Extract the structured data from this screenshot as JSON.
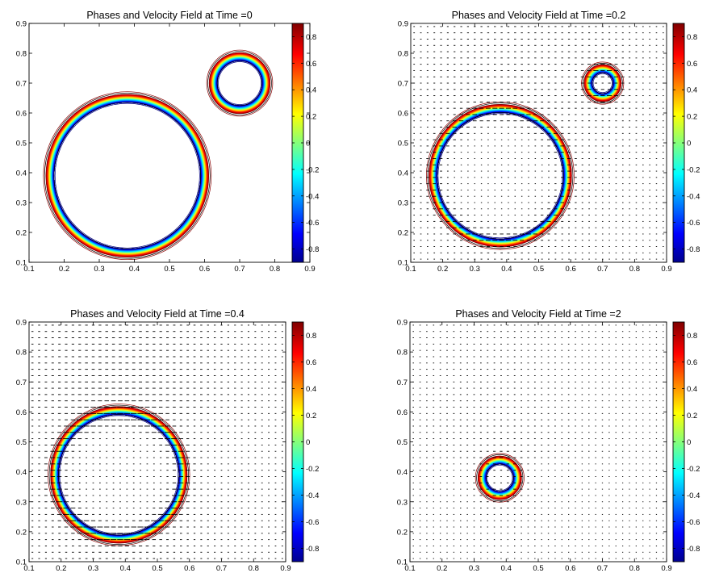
{
  "colors": {
    "colormap": "jet",
    "jet_stops": [
      "#00008f",
      "#0000ff",
      "#00ffff",
      "#ffff00",
      "#ff0000",
      "#800000"
    ],
    "contour_line": "#000000",
    "background": "#ffffff"
  },
  "chart_data": [
    {
      "type": "contour+quiver",
      "title": "Phases and Velocity Field at Time =0",
      "xlim": [
        0.1,
        0.9
      ],
      "ylim": [
        0.1,
        0.9
      ],
      "xticks": [
        "0.1",
        "0.2",
        "0.3",
        "0.4",
        "0.5",
        "0.6",
        "0.7",
        "0.8",
        "0.9"
      ],
      "yticks": [
        "0.1",
        "0.2",
        "0.3",
        "0.4",
        "0.5",
        "0.6",
        "0.7",
        "0.8",
        "0.9"
      ],
      "colorbar": {
        "range": [
          -0.9,
          0.9
        ],
        "ticks": [
          "-0.8",
          "-0.6",
          "-0.4",
          "-0.2",
          "0",
          "0.2",
          "0.4",
          "0.6",
          "0.8"
        ]
      },
      "interfaces": [
        {
          "center": [
            0.38,
            0.39
          ],
          "radius": 0.22
        },
        {
          "center": [
            0.7,
            0.7
          ],
          "radius": 0.075
        }
      ],
      "velocity_field": {
        "present": false,
        "strength": 0
      }
    },
    {
      "type": "contour+quiver",
      "title": "Phases and Velocity Field at Time =0.2",
      "xlim": [
        0.1,
        0.9
      ],
      "ylim": [
        0.1,
        0.9
      ],
      "xticks": [
        "0.1",
        "0.2",
        "0.3",
        "0.4",
        "0.5",
        "0.6",
        "0.7",
        "0.8",
        "0.9"
      ],
      "yticks": [
        "0.1",
        "0.2",
        "0.3",
        "0.4",
        "0.5",
        "0.6",
        "0.7",
        "0.8",
        "0.9"
      ],
      "colorbar": {
        "range": [
          -0.9,
          0.9
        ],
        "ticks": [
          "-0.8",
          "-0.6",
          "-0.4",
          "-0.2",
          "0",
          "0.2",
          "0.4",
          "0.6",
          "0.8"
        ]
      },
      "interfaces": [
        {
          "center": [
            0.38,
            0.39
          ],
          "radius": 0.21
        },
        {
          "center": [
            0.7,
            0.7
          ],
          "radius": 0.045
        }
      ],
      "velocity_field": {
        "present": true,
        "strength": 0.55
      }
    },
    {
      "type": "contour+quiver",
      "title": "Phases and Velocity Field at Time =0.4",
      "xlim": [
        0.1,
        0.9
      ],
      "ylim": [
        0.1,
        0.9
      ],
      "xticks": [
        "0.1",
        "0.2",
        "0.3",
        "0.4",
        "0.5",
        "0.6",
        "0.7",
        "0.8",
        "0.9"
      ],
      "yticks": [
        "0.1",
        "0.2",
        "0.3",
        "0.4",
        "0.5",
        "0.6",
        "0.7",
        "0.8",
        "0.9"
      ],
      "colorbar": {
        "range": [
          -0.9,
          0.9
        ],
        "ticks": [
          "-0.8",
          "-0.6",
          "-0.4",
          "-0.2",
          "0",
          "0.2",
          "0.4",
          "0.6",
          "0.8"
        ]
      },
      "interfaces": [
        {
          "center": [
            0.38,
            0.39
          ],
          "radius": 0.2
        }
      ],
      "velocity_field": {
        "present": true,
        "strength": 1.0
      }
    },
    {
      "type": "contour+quiver",
      "title": "Phases and Velocity Field at Time =2",
      "xlim": [
        0.1,
        0.9
      ],
      "ylim": [
        0.1,
        0.9
      ],
      "xticks": [
        "0.1",
        "0.2",
        "0.3",
        "0.4",
        "0.5",
        "0.6",
        "0.7",
        "0.8",
        "0.9"
      ],
      "yticks": [
        "0.1",
        "0.2",
        "0.3",
        "0.4",
        "0.5",
        "0.6",
        "0.7",
        "0.8",
        "0.9"
      ],
      "colorbar": {
        "range": [
          -0.9,
          0.9
        ],
        "ticks": [
          "-0.8",
          "-0.6",
          "-0.4",
          "-0.2",
          "0",
          "0.2",
          "0.4",
          "0.6",
          "0.8"
        ]
      },
      "interfaces": [
        {
          "center": [
            0.38,
            0.38
          ],
          "radius": 0.055
        }
      ],
      "velocity_field": {
        "present": true,
        "strength": 0.35
      }
    }
  ]
}
